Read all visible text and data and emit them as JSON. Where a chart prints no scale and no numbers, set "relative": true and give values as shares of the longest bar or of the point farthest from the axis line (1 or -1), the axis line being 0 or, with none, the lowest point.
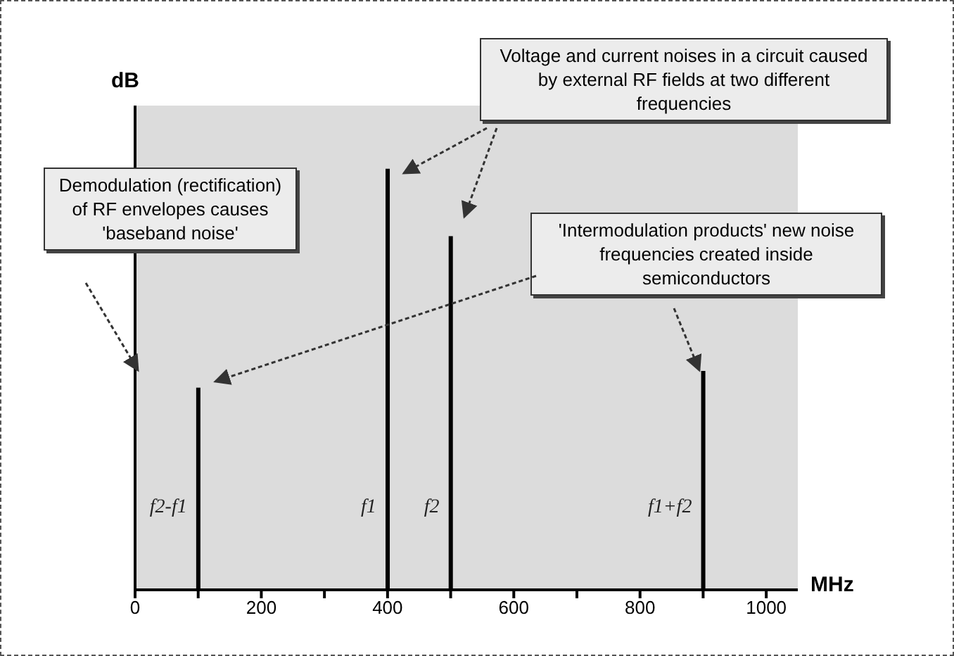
{
  "chart_data": {
    "type": "bar",
    "relative": true,
    "xlabel": "MHz",
    "ylabel": "dB",
    "x": [
      100,
      400,
      500,
      900
    ],
    "values": [
      0.48,
      1,
      0.84,
      0.52
    ],
    "color": "#000000",
    "xlim": [
      0,
      1050
    ],
    "xticks": [
      0,
      {
        "value": 100,
        "label": null
      },
      200,
      {
        "value": 300,
        "label": null
      },
      400,
      {
        "value": 500,
        "label": null
      },
      600,
      {
        "value": 700,
        "label": null
      },
      800,
      {
        "value": 900,
        "label": null
      },
      1000
    ],
    "annotations": [
      "Demodulation (rectification) of RF envelopes causes 'baseband noise'",
      "Voltage and current noises in a circuit caused by external RF fields at two different frequencies",
      "'Intermodulation products' new noise frequencies created inside semiconductors",
      {
        "text": "f2-f1",
        "x": 100,
        "y": 0.2
      },
      {
        "text": "f1",
        "x": 400,
        "y": 0.2
      },
      {
        "text": "f2",
        "x": 500,
        "y": 0.2
      },
      {
        "text": "f1+f2",
        "x": 900,
        "y": 0.2
      }
    ]
  }
}
